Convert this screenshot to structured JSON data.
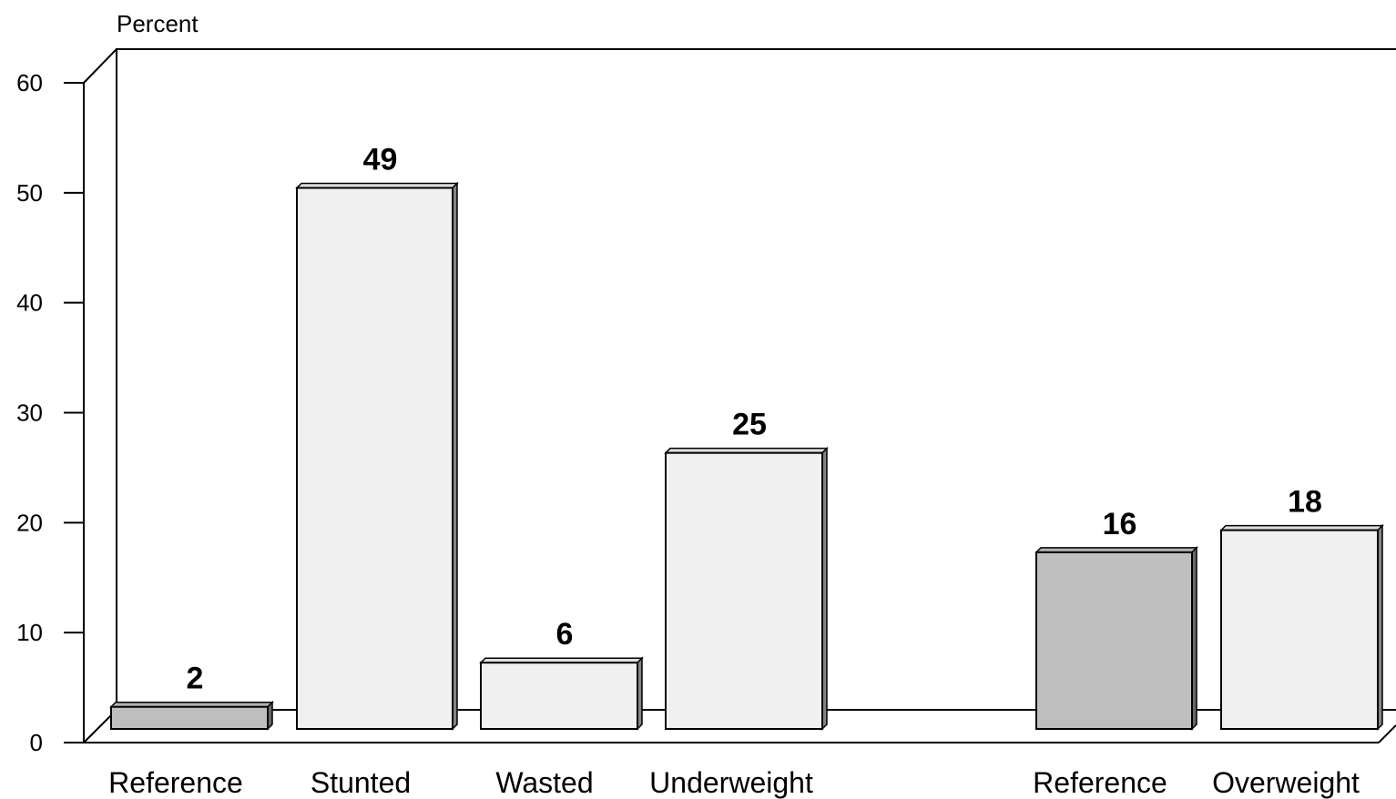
{
  "chart_data": {
    "type": "bar",
    "ylabel": "Percent",
    "xlabel": "",
    "title": "",
    "ylim": [
      0,
      60
    ],
    "yticks": [
      0,
      10,
      20,
      30,
      40,
      50,
      60
    ],
    "grid": false,
    "legend": "none",
    "bars": [
      {
        "label": "Reference",
        "value": 2,
        "value_label": "2",
        "color": "#bfbfbf"
      },
      {
        "label": "Stunted",
        "value": 49,
        "value_label": "49",
        "color": "#f0f0f0"
      },
      {
        "label": "Wasted",
        "value": 6,
        "value_label": "6",
        "color": "#f0f0f0"
      },
      {
        "label": "Underweight",
        "value": 25,
        "value_label": "25",
        "color": "#f0f0f0"
      },
      {
        "label": "Reference",
        "value": 16,
        "value_label": "16",
        "color": "#bfbfbf"
      },
      {
        "label": "Overweight",
        "value": 18,
        "value_label": "18",
        "color": "#f0f0f0"
      }
    ]
  }
}
